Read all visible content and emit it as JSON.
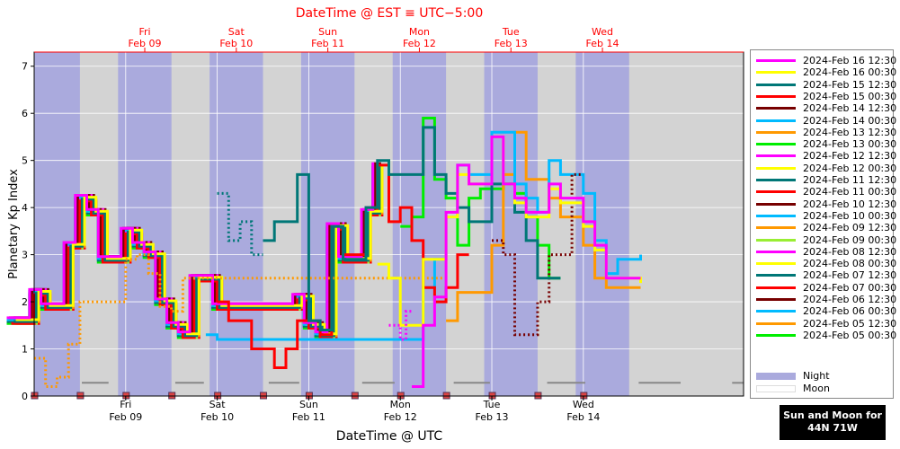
{
  "top_title": "DateTime @ EST ≡ UTC−5:00",
  "bottom_title": "DateTime @ UTC",
  "sun_moon_box": {
    "line1": "Sun and Moon for",
    "line2": "44N 71W"
  },
  "colors": {
    "night": "#aaaadd",
    "day": "#d3d3d3",
    "moon": "#ffffff",
    "top_axis_text": "#ff0000"
  },
  "chart_data": {
    "type": "line",
    "title": "",
    "xlabel": "DateTime @ UTC",
    "ylabel": "Planetary Kp Index",
    "xlim": [
      "2024-02-08 00:00",
      "2024-02-15 18:00"
    ],
    "ylim": [
      0,
      7.3
    ],
    "yticks": [
      0,
      1,
      2,
      3,
      4,
      5,
      6,
      7
    ],
    "x_ticks_utc": [
      {
        "day": "Fri",
        "date": "Feb 09",
        "t": "2024-02-09 00:00"
      },
      {
        "day": "Sat",
        "date": "Feb 10",
        "t": "2024-02-10 00:00"
      },
      {
        "day": "Sun",
        "date": "Feb 11",
        "t": "2024-02-11 00:00"
      },
      {
        "day": "Mon",
        "date": "Feb 12",
        "t": "2024-02-12 00:00"
      },
      {
        "day": "Tue",
        "date": "Feb 13",
        "t": "2024-02-13 00:00"
      },
      {
        "day": "Wed",
        "date": "Feb 14",
        "t": "2024-02-14 00:00"
      }
    ],
    "x_ticks_est": [
      {
        "day": "Fri",
        "date": "Feb 09",
        "t": "2024-02-09 05:00"
      },
      {
        "day": "Sat",
        "date": "Feb 10",
        "t": "2024-02-10 05:00"
      },
      {
        "day": "Sun",
        "date": "Feb 11",
        "t": "2024-02-11 05:00"
      },
      {
        "day": "Mon",
        "date": "Feb 12",
        "t": "2024-02-12 05:00"
      },
      {
        "day": "Tue",
        "date": "Feb 13",
        "t": "2024-02-13 05:00"
      },
      {
        "day": "Wed",
        "date": "Feb 14",
        "t": "2024-02-14 05:00"
      }
    ],
    "grid": true,
    "legend_position": "right",
    "night_intervals": [
      [
        "2024-02-07 22:00",
        "2024-02-08 12:00"
      ],
      [
        "2024-02-08 22:00",
        "2024-02-09 12:00"
      ],
      [
        "2024-02-09 22:00",
        "2024-02-10 12:00"
      ],
      [
        "2024-02-10 22:00",
        "2024-02-11 12:00"
      ],
      [
        "2024-02-11 22:00",
        "2024-02-12 12:00"
      ],
      [
        "2024-02-12 22:00",
        "2024-02-13 12:00"
      ],
      [
        "2024-02-13 22:00",
        "2024-02-14 12:00"
      ]
    ],
    "moon_intervals": [
      [
        "2024-02-08 12:30",
        "2024-02-08 19:30"
      ],
      [
        "2024-02-09 13:00",
        "2024-02-09 20:30"
      ],
      [
        "2024-02-10 13:30",
        "2024-02-10 21:30"
      ],
      [
        "2024-02-11 14:00",
        "2024-02-11 22:30"
      ],
      [
        "2024-02-12 14:00",
        "2024-02-12 23:30"
      ],
      [
        "2024-02-13 14:30",
        "2024-02-14 00:30"
      ],
      [
        "2024-02-14 14:30",
        "2024-02-15 01:30"
      ],
      [
        "2024-02-15 15:00",
        "2024-02-15 18:00"
      ]
    ],
    "moon_markers": [
      "2024-02-08 00:00",
      "2024-02-08 12:00",
      "2024-02-09 00:00",
      "2024-02-09 12:00",
      "2024-02-10 00:00",
      "2024-02-10 12:00",
      "2024-02-11 00:00",
      "2024-02-11 12:00",
      "2024-02-12 00:00",
      "2024-02-12 12:00",
      "2024-02-13 00:00",
      "2024-02-13 12:00",
      "2024-02-14 00:00"
    ],
    "series": [
      {
        "name": "2024-Feb 16 12:30",
        "color": "#ff00ff",
        "dotted_until": "2024-02-12 03:00",
        "points": [
          [
            "2024-02-11 21:00",
            1.5
          ],
          [
            "2024-02-12 00:00",
            1.2
          ],
          [
            "2024-02-12 01:30",
            1.8
          ],
          [
            "2024-02-12 03:00",
            0.2
          ],
          [
            "2024-02-12 04:00",
            0.2
          ],
          [
            "2024-02-12 06:00",
            1.5
          ],
          [
            "2024-02-12 09:00",
            2.1
          ],
          [
            "2024-02-12 12:00",
            3.9
          ],
          [
            "2024-02-12 15:00",
            4.9
          ],
          [
            "2024-02-12 18:00",
            4.5
          ],
          [
            "2024-02-13 00:00",
            5.5
          ],
          [
            "2024-02-13 03:00",
            4.5
          ],
          [
            "2024-02-13 06:00",
            4.2
          ],
          [
            "2024-02-13 09:00",
            3.9
          ],
          [
            "2024-02-13 15:00",
            4.5
          ],
          [
            "2024-02-13 18:00",
            4.2
          ],
          [
            "2024-02-14 00:00",
            3.7
          ],
          [
            "2024-02-14 03:00",
            3.2
          ],
          [
            "2024-02-14 06:00",
            2.5
          ],
          [
            "2024-02-14 15:00",
            2.5
          ]
        ]
      },
      {
        "name": "2024-Feb 16 00:30",
        "color": "#ffff00",
        "points": [
          [
            "2024-02-11 18:00",
            2.8
          ],
          [
            "2024-02-11 21:00",
            2.5
          ],
          [
            "2024-02-12 00:00",
            1.5
          ],
          [
            "2024-02-12 06:00",
            2.9
          ],
          [
            "2024-02-12 09:00",
            2.9
          ],
          [
            "2024-02-12 12:00",
            3.8
          ],
          [
            "2024-02-12 15:00",
            4.7
          ],
          [
            "2024-02-12 18:00",
            4.5
          ],
          [
            "2024-02-13 00:00",
            5.5
          ],
          [
            "2024-02-13 03:00",
            4.5
          ],
          [
            "2024-02-13 06:00",
            4.1
          ],
          [
            "2024-02-13 09:00",
            3.8
          ],
          [
            "2024-02-13 15:00",
            4.4
          ],
          [
            "2024-02-13 18:00",
            4.1
          ],
          [
            "2024-02-14 00:00",
            3.6
          ],
          [
            "2024-02-14 03:00",
            3.1
          ],
          [
            "2024-02-14 06:00",
            2.5
          ],
          [
            "2024-02-14 15:00",
            2.4
          ]
        ]
      },
      {
        "name": "2024-Feb 15 12:30",
        "color": "#007777",
        "dotted_until": "2024-02-10 12:00",
        "points": [
          [
            "2024-02-10 00:00",
            4.3
          ],
          [
            "2024-02-10 03:00",
            3.3
          ],
          [
            "2024-02-10 06:00",
            3.7
          ],
          [
            "2024-02-10 09:00",
            3.0
          ],
          [
            "2024-02-10 12:00",
            3.3
          ],
          [
            "2024-02-10 15:00",
            3.7
          ],
          [
            "2024-02-10 21:00",
            4.7
          ],
          [
            "2024-02-11 00:00",
            1.6
          ],
          [
            "2024-02-11 03:00",
            1.4
          ],
          [
            "2024-02-11 06:00",
            3.6
          ],
          [
            "2024-02-11 09:00",
            2.9
          ],
          [
            "2024-02-11 15:00",
            4.0
          ],
          [
            "2024-02-11 18:00",
            5.0
          ],
          [
            "2024-02-11 21:00",
            4.7
          ],
          [
            "2024-02-12 06:00",
            5.7
          ],
          [
            "2024-02-12 09:00",
            4.7
          ],
          [
            "2024-02-12 12:00",
            4.3
          ],
          [
            "2024-02-12 15:00",
            4.0
          ],
          [
            "2024-02-12 18:00",
            3.7
          ],
          [
            "2024-02-13 00:00",
            4.5
          ],
          [
            "2024-02-13 06:00",
            3.9
          ],
          [
            "2024-02-13 09:00",
            3.3
          ],
          [
            "2024-02-13 12:00",
            2.5
          ],
          [
            "2024-02-13 18:00",
            2.5
          ]
        ]
      },
      {
        "name": "2024-Feb 15 00:30",
        "color": "#ff0000",
        "points": [
          [
            "2024-02-10 00:00",
            2.0
          ],
          [
            "2024-02-10 03:00",
            1.6
          ],
          [
            "2024-02-10 09:00",
            1.0
          ],
          [
            "2024-02-10 15:00",
            0.6
          ],
          [
            "2024-02-10 18:00",
            1.0
          ],
          [
            "2024-02-10 21:00",
            1.6
          ],
          [
            "2024-02-11 00:00",
            1.6
          ],
          [
            "2024-02-11 03:00",
            1.3
          ],
          [
            "2024-02-11 06:00",
            3.6
          ],
          [
            "2024-02-11 09:00",
            3.0
          ],
          [
            "2024-02-11 15:00",
            4.0
          ],
          [
            "2024-02-11 18:00",
            4.9
          ],
          [
            "2024-02-11 21:00",
            3.7
          ],
          [
            "2024-02-12 00:00",
            4.0
          ],
          [
            "2024-02-12 03:00",
            3.3
          ],
          [
            "2024-02-12 06:00",
            2.3
          ],
          [
            "2024-02-12 09:00",
            2.0
          ],
          [
            "2024-02-12 12:00",
            2.3
          ],
          [
            "2024-02-12 15:00",
            3.0
          ],
          [
            "2024-02-12 18:00",
            3.0
          ]
        ]
      },
      {
        "name": "2024-Feb 14 12:30",
        "color": "#770000",
        "dotted_until": "2024-02-14 09:00",
        "points": [
          [
            "2024-02-13 00:00",
            3.3
          ],
          [
            "2024-02-13 03:00",
            3.0
          ],
          [
            "2024-02-13 06:00",
            1.3
          ],
          [
            "2024-02-13 09:00",
            1.3
          ],
          [
            "2024-02-13 12:00",
            2.0
          ],
          [
            "2024-02-13 15:00",
            3.0
          ],
          [
            "2024-02-13 18:00",
            3.0
          ],
          [
            "2024-02-13 21:00",
            4.7
          ],
          [
            "2024-02-14 00:00",
            4.7
          ]
        ]
      },
      {
        "name": "2024-Feb 14 00:30",
        "color": "#00bbff",
        "points": [
          [
            "2024-02-09 21:00",
            1.3
          ],
          [
            "2024-02-10 00:00",
            1.2
          ],
          [
            "2024-02-12 03:00",
            1.2
          ],
          [
            "2024-02-12 06:00",
            2.3
          ],
          [
            "2024-02-12 09:00",
            2.9
          ],
          [
            "2024-02-12 12:00",
            3.8
          ],
          [
            "2024-02-12 15:00",
            4.9
          ],
          [
            "2024-02-12 18:00",
            4.7
          ],
          [
            "2024-02-13 00:00",
            5.6
          ],
          [
            "2024-02-13 06:00",
            4.5
          ],
          [
            "2024-02-13 09:00",
            4.2
          ],
          [
            "2024-02-13 12:00",
            3.9
          ],
          [
            "2024-02-13 15:00",
            5.0
          ],
          [
            "2024-02-13 18:00",
            4.7
          ],
          [
            "2024-02-14 00:00",
            4.3
          ],
          [
            "2024-02-14 03:00",
            3.3
          ],
          [
            "2024-02-14 06:00",
            2.6
          ],
          [
            "2024-02-14 09:00",
            2.9
          ],
          [
            "2024-02-14 15:00",
            3.0
          ]
        ]
      },
      {
        "name": "2024-Feb 13 12:30",
        "color": "#ff9900",
        "dotted_until": "2024-02-10 00:00",
        "points": [
          [
            "2024-02-08 00:00",
            0.8
          ],
          [
            "2024-02-08 03:00",
            0.2
          ],
          [
            "2024-02-08 06:00",
            0.4
          ],
          [
            "2024-02-08 09:00",
            1.1
          ],
          [
            "2024-02-08 12:00",
            2.0
          ],
          [
            "2024-02-08 15:00",
            2.0
          ],
          [
            "2024-02-09 00:00",
            2.9
          ],
          [
            "2024-02-09 03:00",
            3.0
          ],
          [
            "2024-02-09 06:00",
            2.6
          ],
          [
            "2024-02-09 09:00",
            1.9
          ],
          [
            "2024-02-09 12:00",
            1.8
          ],
          [
            "2024-02-09 15:00",
            2.5
          ],
          [
            "2024-02-09 21:00",
            2.5
          ],
          [
            "2024-02-12 12:00",
            1.6
          ],
          [
            "2024-02-12 15:00",
            2.2
          ],
          [
            "2024-02-12 21:00",
            2.2
          ],
          [
            "2024-02-13 00:00",
            3.2
          ],
          [
            "2024-02-13 03:00",
            4.7
          ],
          [
            "2024-02-13 06:00",
            5.6
          ],
          [
            "2024-02-13 09:00",
            4.6
          ],
          [
            "2024-02-13 15:00",
            4.2
          ],
          [
            "2024-02-13 18:00",
            3.8
          ],
          [
            "2024-02-14 00:00",
            3.2
          ],
          [
            "2024-02-14 03:00",
            2.5
          ],
          [
            "2024-02-14 06:00",
            2.3
          ],
          [
            "2024-02-14 15:00",
            2.3
          ]
        ]
      },
      {
        "name": "2024-Feb 13 00:30",
        "color": "#00ee00",
        "points": [
          [
            "2024-02-12 00:00",
            3.6
          ],
          [
            "2024-02-12 03:00",
            3.8
          ],
          [
            "2024-02-12 06:00",
            5.9
          ],
          [
            "2024-02-12 09:00",
            4.6
          ],
          [
            "2024-02-12 12:00",
            4.2
          ],
          [
            "2024-02-12 15:00",
            3.2
          ],
          [
            "2024-02-12 18:00",
            4.2
          ],
          [
            "2024-02-12 21:00",
            4.4
          ],
          [
            "2024-02-13 03:00",
            4.5
          ],
          [
            "2024-02-13 06:00",
            4.3
          ],
          [
            "2024-02-13 09:00",
            3.8
          ],
          [
            "2024-02-13 12:00",
            3.2
          ],
          [
            "2024-02-13 15:00",
            2.5
          ],
          [
            "2024-02-13 18:00",
            2.5
          ]
        ]
      }
    ],
    "early_bundle": {
      "names": [
        "2024-Feb 12 12:30",
        "2024-Feb 12 00:30",
        "2024-Feb 11 12:30",
        "2024-Feb 11 00:30",
        "2024-Feb 10 12:30",
        "2024-Feb 10 00:30",
        "2024-Feb 09 12:30",
        "2024-Feb 09 00:30",
        "2024-Feb 08 12:30",
        "2024-Feb 08 00:30",
        "2024-Feb 07 12:30",
        "2024-Feb 07 00:30",
        "2024-Feb 06 12:30",
        "2024-Feb 06 00:30",
        "2024-Feb 05 12:30",
        "2024-Feb 05 00:30"
      ],
      "base_points": [
        [
          "2024-02-07 18:00",
          1.6
        ],
        [
          "2024-02-08 00:00",
          2.2
        ],
        [
          "2024-02-08 03:00",
          1.9
        ],
        [
          "2024-02-08 09:00",
          3.2
        ],
        [
          "2024-02-08 12:00",
          4.2
        ],
        [
          "2024-02-08 15:00",
          3.9
        ],
        [
          "2024-02-08 18:00",
          2.9
        ],
        [
          "2024-02-08 21:00",
          2.9
        ],
        [
          "2024-02-09 00:00",
          3.5
        ],
        [
          "2024-02-09 03:00",
          3.2
        ],
        [
          "2024-02-09 06:00",
          3.0
        ],
        [
          "2024-02-09 09:00",
          2.0
        ],
        [
          "2024-02-09 12:00",
          1.5
        ],
        [
          "2024-02-09 15:00",
          1.3
        ],
        [
          "2024-02-09 18:00",
          2.5
        ],
        [
          "2024-02-09 21:00",
          2.5
        ],
        [
          "2024-02-10 00:00",
          1.9
        ],
        [
          "2024-02-10 21:00",
          2.1
        ],
        [
          "2024-02-11 00:00",
          1.5
        ],
        [
          "2024-02-11 03:00",
          1.3
        ],
        [
          "2024-02-11 06:00",
          3.6
        ],
        [
          "2024-02-11 09:00",
          2.9
        ],
        [
          "2024-02-11 15:00",
          3.9
        ],
        [
          "2024-02-11 18:00",
          4.9
        ]
      ]
    }
  },
  "legend": {
    "night_label": "Night",
    "moon_label": "Moon"
  }
}
